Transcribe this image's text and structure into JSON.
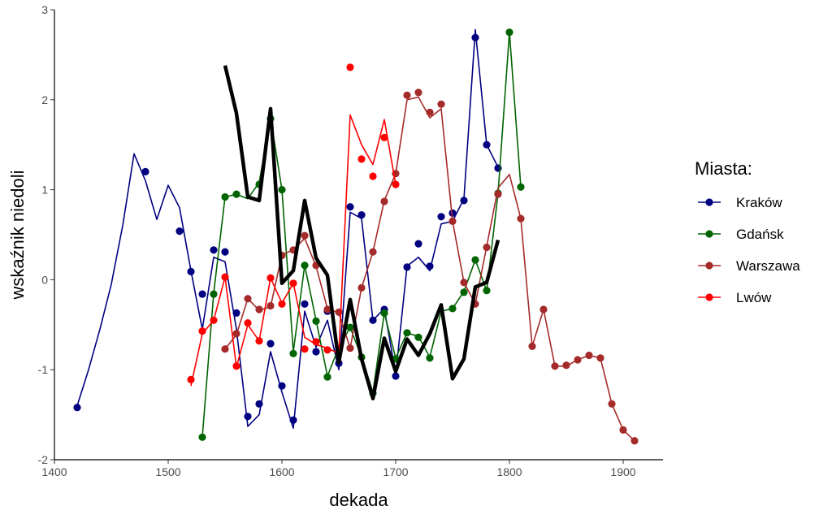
{
  "chart_data": {
    "type": "line",
    "xlabel": "dekada",
    "ylabel": "wskaźnik niedoli",
    "xlim": [
      1400,
      1935
    ],
    "ylim": [
      -2,
      3
    ],
    "x_ticks": [
      1400,
      1500,
      1600,
      1700,
      1800,
      1900
    ],
    "y_ticks": [
      -2,
      -1,
      0,
      1,
      2,
      3
    ],
    "grid": false,
    "legend": {
      "title": "Miasta:",
      "position": "right",
      "entries": [
        "Kraków",
        "Gdańsk",
        "Warszawa",
        "Lwów"
      ]
    },
    "series": [
      {
        "name": "Kraków",
        "color": "#000080",
        "line": [
          [
            1420,
            -1.4
          ],
          [
            1430,
            -1.0
          ],
          [
            1440,
            -0.55
          ],
          [
            1450,
            -0.05
          ],
          [
            1460,
            0.6
          ],
          [
            1470,
            1.4
          ],
          [
            1480,
            1.1
          ],
          [
            1490,
            0.67
          ],
          [
            1500,
            1.05
          ],
          [
            1510,
            0.8
          ],
          [
            1520,
            0.1
          ],
          [
            1530,
            -0.55
          ],
          [
            1540,
            0.25
          ],
          [
            1550,
            0.2
          ],
          [
            1560,
            -0.55
          ],
          [
            1570,
            -1.63
          ],
          [
            1580,
            -1.5
          ],
          [
            1590,
            -0.8
          ],
          [
            1600,
            -1.25
          ],
          [
            1610,
            -1.65
          ],
          [
            1620,
            -0.35
          ],
          [
            1630,
            -0.75
          ],
          [
            1640,
            -0.45
          ],
          [
            1650,
            -1.0
          ],
          [
            1660,
            0.75
          ],
          [
            1670,
            0.68
          ],
          [
            1680,
            -0.45
          ],
          [
            1690,
            -0.32
          ],
          [
            1700,
            -1.05
          ],
          [
            1710,
            0.15
          ],
          [
            1720,
            0.25
          ],
          [
            1730,
            0.1
          ],
          [
            1740,
            0.62
          ],
          [
            1750,
            0.65
          ],
          [
            1760,
            0.9
          ],
          [
            1770,
            2.78
          ],
          [
            1780,
            1.5
          ],
          [
            1790,
            1.25
          ]
        ],
        "points": [
          [
            1420,
            -1.42
          ],
          [
            1480,
            1.2
          ],
          [
            1510,
            0.54
          ],
          [
            1520,
            0.09
          ],
          [
            1530,
            -0.16
          ],
          [
            1540,
            0.33
          ],
          [
            1550,
            0.31
          ],
          [
            1560,
            -0.37
          ],
          [
            1570,
            -1.52
          ],
          [
            1580,
            -1.38
          ],
          [
            1590,
            -0.71
          ],
          [
            1600,
            -1.18
          ],
          [
            1610,
            -1.56
          ],
          [
            1620,
            -0.27
          ],
          [
            1630,
            -0.8
          ],
          [
            1640,
            -0.35
          ],
          [
            1650,
            -0.93
          ],
          [
            1660,
            0.81
          ],
          [
            1670,
            0.72
          ],
          [
            1680,
            -0.45
          ],
          [
            1690,
            -0.33
          ],
          [
            1700,
            -1.07
          ],
          [
            1710,
            0.14
          ],
          [
            1720,
            0.4
          ],
          [
            1730,
            0.15
          ],
          [
            1740,
            0.7
          ],
          [
            1750,
            0.74
          ],
          [
            1760,
            0.88
          ],
          [
            1770,
            2.69
          ],
          [
            1780,
            1.5
          ],
          [
            1790,
            1.24
          ]
        ]
      },
      {
        "name": "Gdańsk",
        "color": "#006400",
        "line": [
          [
            1530,
            -1.75
          ],
          [
            1540,
            -0.15
          ],
          [
            1550,
            0.92
          ],
          [
            1560,
            0.95
          ],
          [
            1570,
            0.9
          ],
          [
            1580,
            1.08
          ],
          [
            1590,
            1.8
          ],
          [
            1600,
            1.0
          ],
          [
            1610,
            -0.8
          ],
          [
            1620,
            0.16
          ],
          [
            1630,
            -0.45
          ],
          [
            1640,
            -1.07
          ],
          [
            1650,
            -0.75
          ],
          [
            1660,
            -0.53
          ],
          [
            1670,
            -0.86
          ],
          [
            1680,
            -1.25
          ],
          [
            1690,
            -0.37
          ],
          [
            1700,
            -0.87
          ],
          [
            1710,
            -0.59
          ],
          [
            1720,
            -0.63
          ],
          [
            1730,
            -0.86
          ],
          [
            1740,
            -0.35
          ],
          [
            1750,
            -0.32
          ],
          [
            1760,
            -0.13
          ],
          [
            1770,
            0.22
          ],
          [
            1780,
            -0.12
          ],
          [
            1790,
            0.96
          ],
          [
            1800,
            2.75
          ],
          [
            1810,
            1.03
          ]
        ],
        "points": [
          [
            1530,
            -1.75
          ],
          [
            1540,
            -0.16
          ],
          [
            1550,
            0.92
          ],
          [
            1560,
            0.95
          ],
          [
            1580,
            1.06
          ],
          [
            1590,
            1.79
          ],
          [
            1600,
            1.0
          ],
          [
            1610,
            -0.82
          ],
          [
            1620,
            0.16
          ],
          [
            1630,
            -0.46
          ],
          [
            1640,
            -1.08
          ],
          [
            1660,
            -0.53
          ],
          [
            1670,
            -0.86
          ],
          [
            1680,
            -1.26
          ],
          [
            1690,
            -0.37
          ],
          [
            1700,
            -0.88
          ],
          [
            1710,
            -0.59
          ],
          [
            1720,
            -0.64
          ],
          [
            1730,
            -0.87
          ],
          [
            1750,
            -0.32
          ],
          [
            1760,
            -0.14
          ],
          [
            1770,
            0.22
          ],
          [
            1780,
            -0.12
          ],
          [
            1790,
            0.96
          ],
          [
            1800,
            2.75
          ],
          [
            1810,
            1.03
          ]
        ]
      },
      {
        "name": "Warszawa",
        "color": "#A52A2A",
        "line": [
          [
            1550,
            -0.77
          ],
          [
            1560,
            -0.61
          ],
          [
            1570,
            -0.21
          ],
          [
            1580,
            -0.34
          ],
          [
            1590,
            -0.3
          ],
          [
            1600,
            0.28
          ],
          [
            1610,
            0.33
          ],
          [
            1620,
            0.46
          ],
          [
            1630,
            0.15
          ],
          [
            1640,
            -0.32
          ],
          [
            1650,
            -0.37
          ],
          [
            1660,
            -0.76
          ],
          [
            1670,
            -0.09
          ],
          [
            1680,
            0.31
          ],
          [
            1690,
            0.88
          ],
          [
            1700,
            1.18
          ],
          [
            1710,
            2.0
          ],
          [
            1720,
            2.03
          ],
          [
            1730,
            1.8
          ],
          [
            1740,
            1.9
          ],
          [
            1750,
            0.65
          ],
          [
            1760,
            -0.03
          ],
          [
            1770,
            -0.27
          ],
          [
            1780,
            0.37
          ],
          [
            1790,
            1.02
          ],
          [
            1800,
            1.17
          ],
          [
            1810,
            0.68
          ],
          [
            1820,
            -0.74
          ],
          [
            1830,
            -0.33
          ],
          [
            1840,
            -0.96
          ],
          [
            1850,
            -0.96
          ],
          [
            1860,
            -0.89
          ],
          [
            1870,
            -0.84
          ],
          [
            1880,
            -0.87
          ],
          [
            1890,
            -1.38
          ],
          [
            1900,
            -1.67
          ],
          [
            1910,
            -1.79
          ]
        ],
        "points": [
          [
            1550,
            -0.77
          ],
          [
            1560,
            -0.6
          ],
          [
            1570,
            -0.21
          ],
          [
            1580,
            -0.33
          ],
          [
            1590,
            -0.29
          ],
          [
            1600,
            0.27
          ],
          [
            1610,
            0.33
          ],
          [
            1620,
            0.49
          ],
          [
            1630,
            0.16
          ],
          [
            1640,
            -0.33
          ],
          [
            1650,
            -0.36
          ],
          [
            1660,
            -0.76
          ],
          [
            1670,
            -0.09
          ],
          [
            1680,
            0.31
          ],
          [
            1690,
            0.87
          ],
          [
            1700,
            1.18
          ],
          [
            1710,
            2.05
          ],
          [
            1720,
            2.08
          ],
          [
            1730,
            1.86
          ],
          [
            1740,
            1.95
          ],
          [
            1750,
            0.65
          ],
          [
            1760,
            -0.03
          ],
          [
            1770,
            -0.27
          ],
          [
            1780,
            0.36
          ],
          [
            1790,
            0.95
          ],
          [
            1810,
            0.68
          ],
          [
            1820,
            -0.74
          ],
          [
            1830,
            -0.33
          ],
          [
            1840,
            -0.96
          ],
          [
            1850,
            -0.95
          ],
          [
            1860,
            -0.89
          ],
          [
            1870,
            -0.84
          ],
          [
            1880,
            -0.87
          ],
          [
            1890,
            -1.38
          ],
          [
            1900,
            -1.67
          ],
          [
            1910,
            -1.79
          ]
        ]
      },
      {
        "name": "Lwów",
        "color": "#FF0000",
        "line": [
          [
            1520,
            -1.18
          ],
          [
            1530,
            -0.6
          ],
          [
            1540,
            -0.45
          ],
          [
            1550,
            0.03
          ],
          [
            1560,
            -0.97
          ],
          [
            1570,
            -0.5
          ],
          [
            1580,
            -0.68
          ],
          [
            1590,
            0.02
          ],
          [
            1600,
            -0.26
          ],
          [
            1610,
            -0.04
          ],
          [
            1620,
            -0.64
          ],
          [
            1630,
            -0.72
          ],
          [
            1640,
            -0.76
          ],
          [
            1650,
            -0.82
          ],
          [
            1660,
            1.83
          ],
          [
            1670,
            1.5
          ],
          [
            1680,
            1.28
          ],
          [
            1690,
            1.78
          ],
          [
            1700,
            1.06
          ]
        ],
        "points": [
          [
            1520,
            -1.11
          ],
          [
            1530,
            -0.57
          ],
          [
            1540,
            -0.45
          ],
          [
            1550,
            0.03
          ],
          [
            1560,
            -0.96
          ],
          [
            1570,
            -0.48
          ],
          [
            1580,
            -0.68
          ],
          [
            1590,
            0.02
          ],
          [
            1600,
            -0.27
          ],
          [
            1610,
            -0.04
          ],
          [
            1620,
            -0.77
          ],
          [
            1630,
            -0.69
          ],
          [
            1640,
            -0.78
          ],
          [
            1660,
            2.36
          ],
          [
            1670,
            1.34
          ],
          [
            1680,
            1.15
          ],
          [
            1690,
            1.58
          ],
          [
            1700,
            1.06
          ]
        ]
      },
      {
        "color": "#000000",
        "line": [
          [
            1550,
            2.38
          ],
          [
            1560,
            1.85
          ],
          [
            1570,
            0.92
          ],
          [
            1580,
            0.88
          ],
          [
            1590,
            1.9
          ],
          [
            1600,
            -0.04
          ],
          [
            1610,
            0.1
          ],
          [
            1620,
            0.88
          ],
          [
            1630,
            0.24
          ],
          [
            1640,
            0.05
          ],
          [
            1650,
            -0.92
          ],
          [
            1660,
            -0.22
          ],
          [
            1670,
            -0.88
          ],
          [
            1680,
            -1.32
          ],
          [
            1690,
            -0.65
          ],
          [
            1700,
            -1.02
          ],
          [
            1710,
            -0.66
          ],
          [
            1720,
            -0.84
          ],
          [
            1730,
            -0.6
          ],
          [
            1740,
            -0.28
          ],
          [
            1750,
            -1.1
          ],
          [
            1760,
            -0.88
          ],
          [
            1770,
            -0.08
          ],
          [
            1780,
            -0.03
          ],
          [
            1790,
            0.44
          ]
        ],
        "points": []
      }
    ]
  }
}
